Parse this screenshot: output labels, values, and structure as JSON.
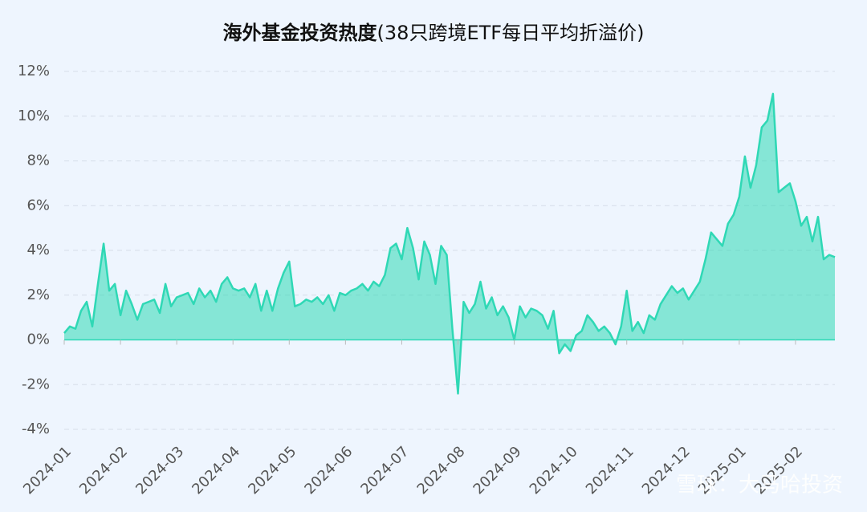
{
  "chart_data": {
    "type": "area",
    "title": "海外基金投资热度",
    "subtitle": "(38只跨境ETF每日平均折溢价)",
    "watermark": "雪球：大马哈投资",
    "color": "#2fd8b5",
    "grid": true,
    "ylim": [
      -4,
      12
    ],
    "yticks": [
      {
        "value": -4,
        "label": "-4%"
      },
      {
        "value": -2,
        "label": "-2%"
      },
      {
        "value": 0,
        "label": "0%"
      },
      {
        "value": 2,
        "label": "2%"
      },
      {
        "value": 4,
        "label": "4%"
      },
      {
        "value": 6,
        "label": "6%"
      },
      {
        "value": 8,
        "label": "8%"
      },
      {
        "value": 10,
        "label": "10%"
      },
      {
        "value": 12,
        "label": "12%"
      }
    ],
    "categories": [
      "2024-01",
      null,
      null,
      null,
      null,
      null,
      null,
      null,
      null,
      null,
      "2024-02",
      null,
      null,
      null,
      null,
      null,
      null,
      null,
      null,
      null,
      "2024-03",
      null,
      null,
      null,
      null,
      null,
      null,
      null,
      null,
      null,
      "2024-04",
      null,
      null,
      null,
      null,
      null,
      null,
      null,
      null,
      null,
      "2024-05",
      null,
      null,
      null,
      null,
      null,
      null,
      null,
      null,
      null,
      "2024-06",
      null,
      null,
      null,
      null,
      null,
      null,
      null,
      null,
      null,
      "2024-07",
      null,
      null,
      null,
      null,
      null,
      null,
      null,
      null,
      null,
      "2024-08",
      null,
      null,
      null,
      null,
      null,
      null,
      null,
      null,
      null,
      "2024-09",
      null,
      null,
      null,
      null,
      null,
      null,
      null,
      null,
      null,
      "2024-10",
      null,
      null,
      null,
      null,
      null,
      null,
      null,
      null,
      null,
      "2024-11",
      null,
      null,
      null,
      null,
      null,
      null,
      null,
      null,
      null,
      "2024-12",
      null,
      null,
      null,
      null,
      null,
      null,
      null,
      null,
      null,
      "2025-01",
      null,
      null,
      null,
      null,
      null,
      null,
      null,
      null,
      null,
      "2025-02",
      null,
      null,
      null,
      null,
      null,
      null,
      null
    ],
    "values": [
      0.3,
      0.6,
      0.5,
      1.3,
      1.7,
      0.6,
      2.5,
      4.3,
      2.2,
      2.5,
      1.1,
      2.2,
      1.6,
      0.9,
      1.6,
      1.7,
      1.8,
      1.2,
      2.5,
      1.5,
      1.9,
      2.0,
      2.1,
      1.6,
      2.3,
      1.9,
      2.2,
      1.7,
      2.5,
      2.8,
      2.3,
      2.2,
      2.3,
      1.9,
      2.5,
      1.3,
      2.2,
      1.3,
      2.3,
      3.0,
      3.5,
      1.5,
      1.6,
      1.8,
      1.7,
      1.9,
      1.6,
      2.0,
      1.3,
      2.1,
      2.0,
      2.2,
      2.3,
      2.5,
      2.2,
      2.6,
      2.4,
      2.9,
      4.1,
      4.3,
      3.6,
      5.0,
      4.1,
      2.7,
      4.4,
      3.8,
      2.5,
      4.2,
      3.8,
      0.5,
      -2.4,
      1.7,
      1.2,
      1.6,
      2.6,
      1.4,
      1.9,
      1.1,
      1.5,
      1.0,
      0.0,
      1.5,
      1.0,
      1.4,
      1.3,
      1.1,
      0.5,
      1.3,
      -0.6,
      -0.2,
      -0.5,
      0.2,
      0.4,
      1.1,
      0.8,
      0.4,
      0.6,
      0.3,
      -0.2,
      0.6,
      2.2,
      0.4,
      0.8,
      0.3,
      1.1,
      0.9,
      1.6,
      2.0,
      2.4,
      2.1,
      2.3,
      1.8,
      2.2,
      2.6,
      3.6,
      4.8,
      4.5,
      4.2,
      5.2,
      5.6,
      6.4,
      8.2,
      6.8,
      7.8,
      9.5,
      9.8,
      11.0,
      6.6,
      6.8,
      7.0,
      6.2,
      5.1,
      5.5,
      4.4,
      5.5,
      3.6,
      3.8,
      3.7
    ]
  }
}
